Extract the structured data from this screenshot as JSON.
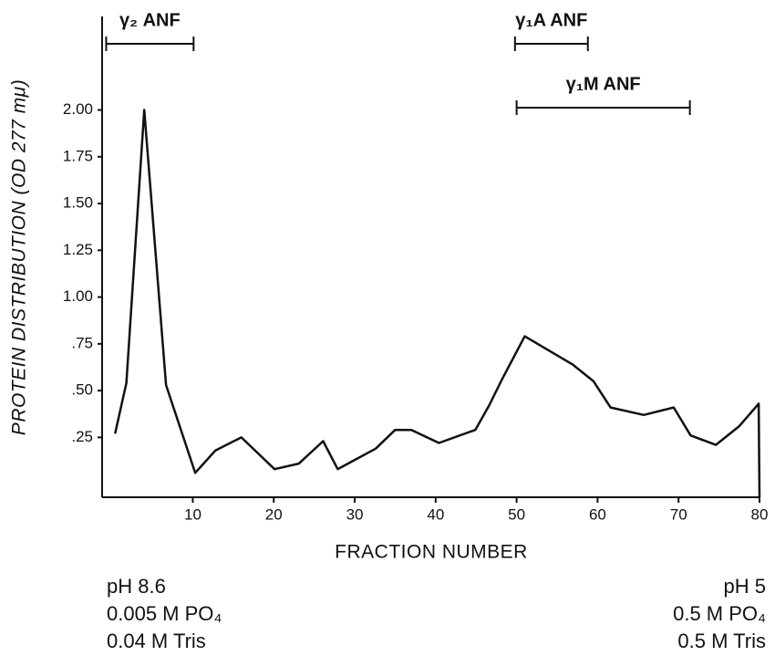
{
  "chart_data": {
    "type": "line",
    "x_label": "FRACTION NUMBER",
    "y_label": "PROTEIN DISTRIBUTION (OD 277 mμ)",
    "x": [
      0.4,
      1.8,
      4.0,
      6.7,
      10.3,
      12.8,
      16.0,
      20.1,
      23.1,
      26.1,
      27.9,
      32.6,
      35.0,
      37.0,
      40.4,
      44.9,
      46.6,
      48.2,
      51.0,
      56.9,
      59.5,
      61.6,
      65.7,
      69.4,
      71.5,
      74.6,
      77.5,
      79.9,
      80
    ],
    "values": [
      0.27,
      0.54,
      2.0,
      0.53,
      0.06,
      0.18,
      0.25,
      0.08,
      0.11,
      0.23,
      0.08,
      0.19,
      0.29,
      0.29,
      0.22,
      0.29,
      0.42,
      0.56,
      0.79,
      0.64,
      0.55,
      0.41,
      0.37,
      0.41,
      0.26,
      0.21,
      0.31,
      0.43,
      -0.07
    ],
    "color": "#111111",
    "xlim": [
      -1.2,
      80
    ],
    "ylim": [
      -0.07,
      2.5
    ],
    "xticks": [
      10,
      20,
      30,
      40,
      50,
      60,
      70,
      80
    ],
    "yticks": [
      {
        "value": 2.0,
        "label": "2.00"
      },
      {
        "value": 1.75,
        "label": "1.75"
      },
      {
        "value": 1.5,
        "label": "1.50"
      },
      {
        "value": 1.25,
        "label": "1.25"
      },
      {
        "value": 1.0,
        "label": "1.00"
      },
      {
        "value": 0.75,
        "label": ".75"
      },
      {
        "value": 0.5,
        "label": ".50"
      },
      {
        "value": 0.25,
        "label": ".25"
      }
    ],
    "annotations": [
      {
        "text": "γ₂ ANF",
        "x": [
          -0.7,
          10.1
        ]
      },
      {
        "text": "γ₁A ANF",
        "x": [
          49.8,
          58.8
        ]
      },
      {
        "text": "γ₁M ANF",
        "x": [
          50.0,
          71.4
        ]
      }
    ],
    "notes_left": [
      "pH 8.6",
      "0.005 M PO₄",
      "0.04 M Tris"
    ],
    "notes_right": [
      "pH 5",
      "0.5 M PO₄",
      "0.5 M Tris"
    ]
  }
}
